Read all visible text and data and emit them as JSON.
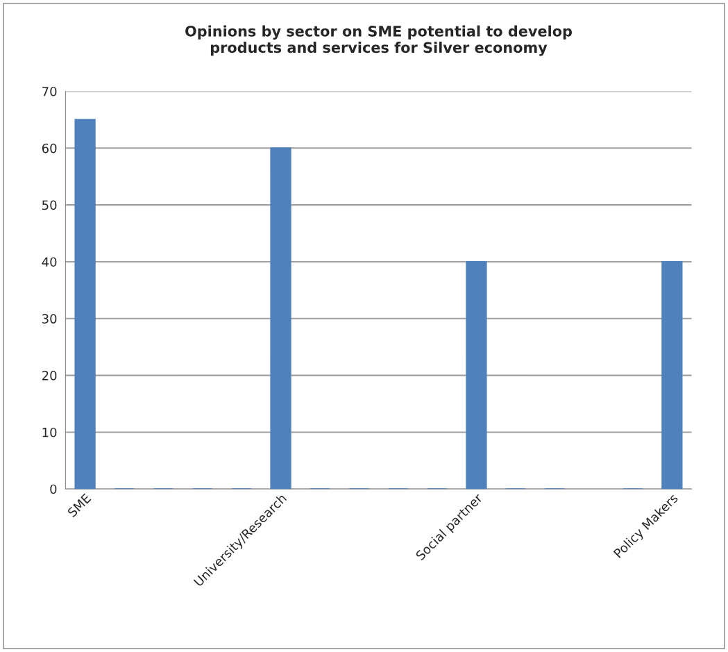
{
  "chart_data": {
    "type": "bar",
    "title": "Opinions by sector on SME potential to develop\nproducts and services for Silver economy",
    "categories": [
      "SME",
      null,
      null,
      null,
      null,
      "University/Research",
      null,
      null,
      null,
      null,
      "Social partner",
      null,
      null,
      null,
      null,
      "Policy Makers"
    ],
    "values": [
      65,
      0,
      0,
      0,
      0,
      60,
      0,
      0,
      0,
      0,
      40,
      0,
      0,
      null,
      0,
      40
    ],
    "color": "#4f81bd",
    "ylim": [
      0,
      70
    ],
    "yticks": [
      0,
      10,
      20,
      30,
      40,
      50,
      60,
      70
    ],
    "grid": "y",
    "legend": false
  }
}
